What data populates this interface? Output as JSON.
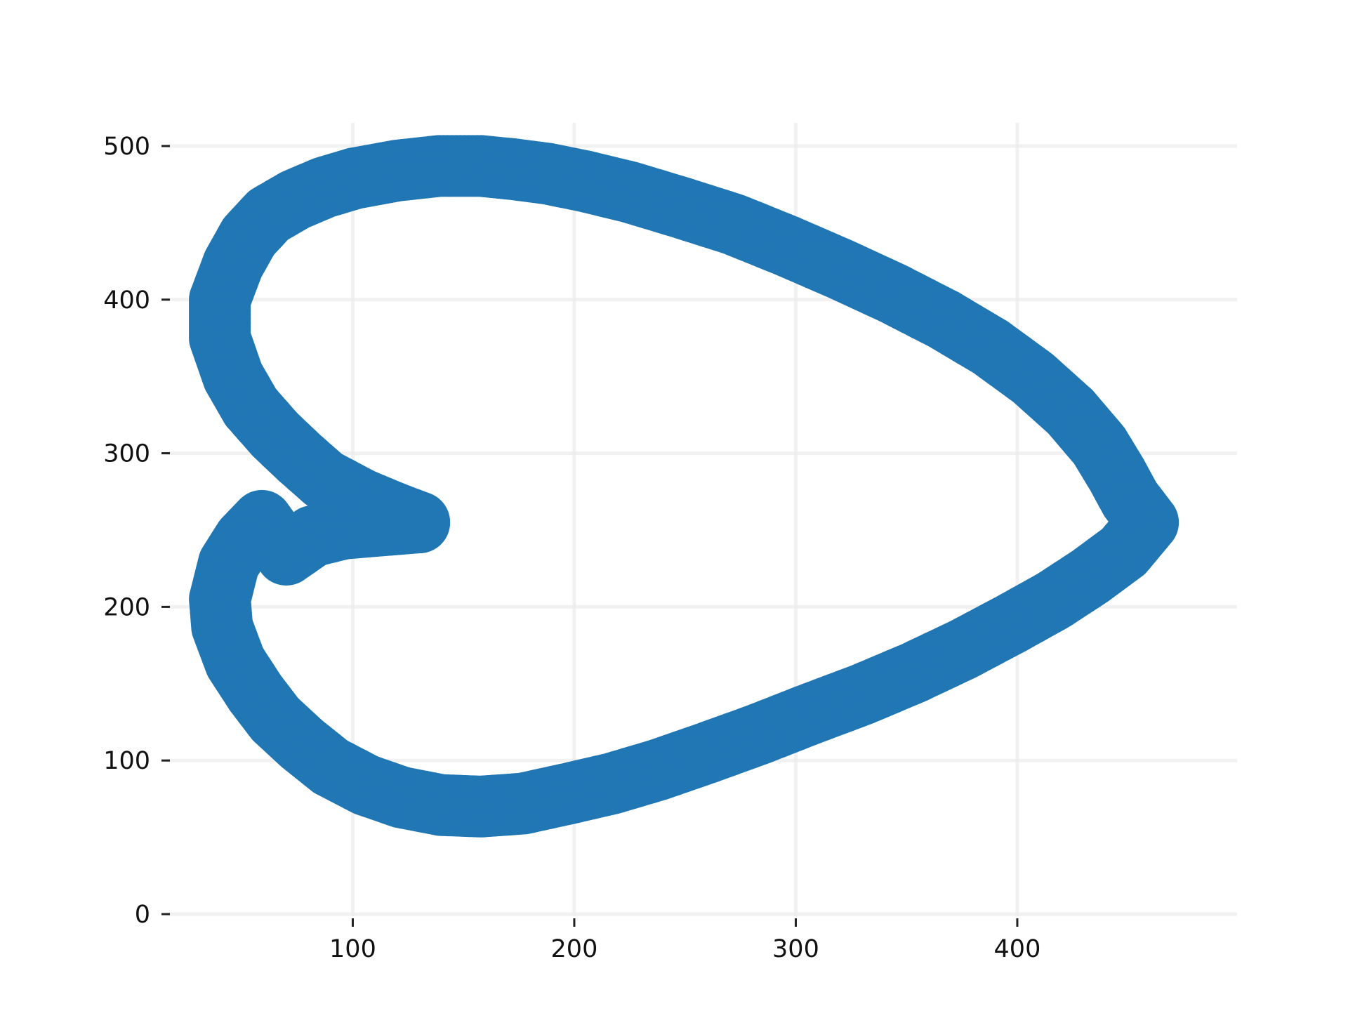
{
  "chart_data": {
    "type": "scatter",
    "title": "",
    "xlabel": "",
    "ylabel": "",
    "xlim": [
      10,
      490
    ],
    "ylim": [
      0,
      500
    ],
    "xticks": [
      100,
      200,
      300,
      400
    ],
    "yticks": [
      0,
      100,
      200,
      300,
      400,
      500
    ],
    "xtick_labels": [
      "100",
      "200",
      "300",
      "400"
    ],
    "ytick_labels": [
      "0",
      "100",
      "200",
      "300",
      "400",
      "500"
    ],
    "grid": true,
    "legend": "none",
    "series": [
      {
        "color": "#2077b4",
        "x": [
          130,
          119,
          104,
          87,
          76,
          65,
          54,
          46,
          40,
          40,
          46,
          53,
          62,
          74,
          87,
          101,
          120,
          139,
          158,
          172,
          188,
          205,
          225,
          248,
          272,
          296,
          320,
          344,
          367,
          388,
          407,
          424,
          437,
          445,
          451,
          459,
          448,
          433,
          416,
          396,
          375,
          353,
          330,
          306,
          283,
          260,
          238,
          217,
          196,
          177,
          158,
          140,
          122,
          106,
          90,
          77,
          65,
          56,
          47,
          41,
          40,
          44,
          51,
          59,
          70,
          82,
          96,
          113,
          130
        ],
        "y": [
          255,
          261,
          270,
          283,
          297,
          312,
          330,
          350,
          375,
          400,
          423,
          441,
          455,
          465,
          473,
          479,
          484,
          487,
          487,
          485,
          482,
          477,
          470,
          460,
          449,
          435,
          420,
          404,
          387,
          369,
          349,
          327,
          305,
          286,
          270,
          255,
          236,
          220,
          204,
          188,
          172,
          157,
          143,
          130,
          117,
          105,
          94,
          85,
          78,
          72,
          70,
          71,
          76,
          84,
          96,
          111,
          127,
          144,
          164,
          187,
          205,
          228,
          244,
          256,
          234,
          246,
          251,
          253,
          255
        ]
      }
    ]
  }
}
